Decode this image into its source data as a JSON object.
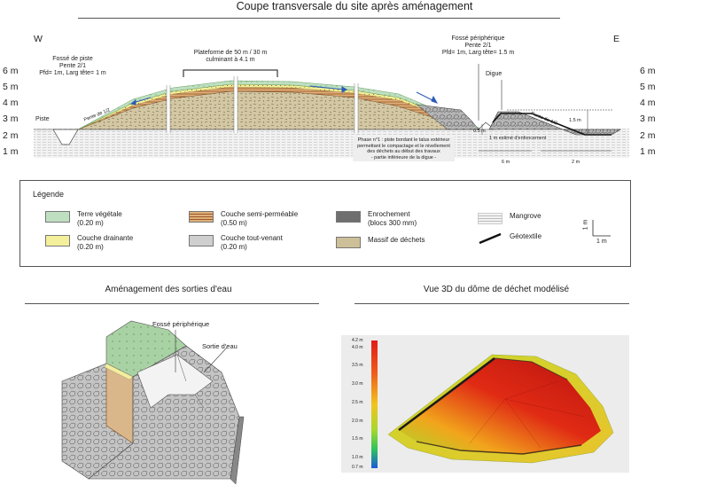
{
  "section": {
    "title": "Coupe transversale du site après aménagement",
    "west": "W",
    "east": "E",
    "y_ticks": [
      "6 m",
      "5 m",
      "4 m",
      "3 m",
      "2 m",
      "1 m"
    ],
    "labels": {
      "piste": "Piste",
      "fosse_piste": [
        "Fossé de piste",
        "Pente 2/1",
        "Pfd= 1m, Larg tête= 1 m"
      ],
      "plateforme": [
        "Plateforme de 50 m / 30 m",
        "culminant à 4.1 m"
      ],
      "fosse_peri": [
        "Fossé périphérique",
        "Pente 2/1",
        "Pfd= 1m, Larg tête= 1.5 m"
      ],
      "digue": "Digue",
      "pente_left": "Pente de 1/2",
      "pente_right": "Pente de 1/2",
      "dim_15": "1.5 m",
      "dim_05": "0.5 m",
      "dim_1m_est": "1 m estimé d'enfoncement",
      "dim_6m": "6 m",
      "dim_2m": "2 m",
      "phase": [
        "Phase n°1 : piste bordant le talus extérieur",
        "permettant le compactage et le nivellement",
        "des déchets au début des travaux",
        "- partie inférieure de la digue -"
      ]
    }
  },
  "legend": {
    "title": "Légende",
    "items": {
      "terre": [
        "Terre végétale",
        "(0.20 m)"
      ],
      "drainante": [
        "Couche drainante",
        "(0.20 m)"
      ],
      "semi": [
        "Couche semi-perméable",
        "(0.50 m)"
      ],
      "tout_venant": [
        "Couche tout-venant",
        "(0.20 m)"
      ],
      "enrochement": [
        "Enrochement",
        "(blocs 300 mm)"
      ],
      "massif": [
        "Massif de déchets"
      ],
      "mangrove": [
        "Mangrove"
      ],
      "geotextile": [
        "Géotextile"
      ]
    },
    "scale_v": "1 m",
    "scale_h": "1 m",
    "colors": {
      "terre": "#bfe0c0",
      "drainante": "#f4ef9a",
      "semi": "#c98b4e",
      "tout_venant": "#cfcfcf",
      "enrochement": "#6f6f6f",
      "massif": "#cdbf98",
      "mangrove": "#e6e6e6"
    }
  },
  "outlets": {
    "title": "Aménagement des sorties d'eau",
    "fosse": "Fossé périphérique",
    "sortie": "Sortie d'eau"
  },
  "dome3d": {
    "title": "Vue 3D du dôme de déchet modélisé",
    "colorbar_ticks": [
      "4.2 m",
      "4.0 m",
      "3.5 m",
      "3.0 m",
      "2.5 m",
      "2.0 m",
      "1.5 m",
      "1.0 m",
      "0.7 m"
    ]
  }
}
